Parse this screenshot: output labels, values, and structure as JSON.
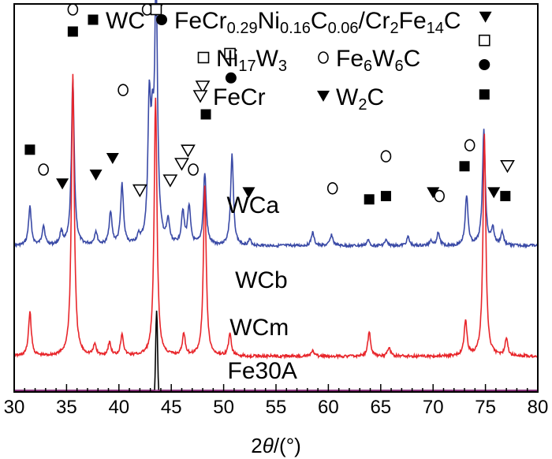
{
  "chart_data": {
    "type": "line",
    "xlabel_prefix": "2",
    "xlabel_var": "θ",
    "xlabel_unit": "/(°)",
    "xlim": [
      30,
      80
    ],
    "x_ticks": [
      "30",
      "35",
      "40",
      "45",
      "50",
      "55",
      "60",
      "65",
      "70",
      "75",
      "80"
    ],
    "grid": false,
    "legend": {
      "placement": "top-right",
      "entries": [
        {
          "marker": "filled-square",
          "label": "WC"
        },
        {
          "marker": "filled-circle",
          "label": "FeCr0.29Ni0.16C0.06/Cr2Fe14C"
        },
        {
          "marker": "open-square",
          "label": "Ni17W3"
        },
        {
          "marker": "open-circle",
          "label": "Fe6W6C"
        },
        {
          "marker": "open-triangle-down",
          "label": "FeCr"
        },
        {
          "marker": "filled-triangle-down",
          "label": "W2C"
        }
      ]
    },
    "series": [
      {
        "name": "WCa",
        "color": "#3a4aa6",
        "baseline": 0.62,
        "peaks": [
          [
            31.5,
            0.35
          ],
          [
            32.8,
            0.18
          ],
          [
            34.5,
            0.12
          ],
          [
            35.6,
            1.5
          ],
          [
            37.8,
            0.12
          ],
          [
            39.2,
            0.3
          ],
          [
            40.3,
            0.55
          ],
          [
            41.9,
            0.06
          ],
          [
            42.9,
            1.2
          ],
          [
            43.2,
            0.75
          ],
          [
            43.55,
            2.3
          ],
          [
            44.7,
            0.2
          ],
          [
            46.1,
            0.3
          ],
          [
            46.7,
            0.35
          ],
          [
            48.2,
            0.65
          ],
          [
            50.8,
            0.82
          ],
          [
            52.5,
            0.05
          ],
          [
            58.5,
            0.12
          ],
          [
            60.3,
            0.1
          ],
          [
            63.8,
            0.05
          ],
          [
            65.5,
            0.05
          ],
          [
            67.6,
            0.08
          ],
          [
            69.8,
            0.05
          ],
          [
            70.5,
            0.12
          ],
          [
            73.2,
            0.45
          ],
          [
            74.85,
            1.05
          ],
          [
            75.7,
            0.15
          ],
          [
            76.6,
            0.12
          ]
        ]
      },
      {
        "name": "WCb",
        "color": "#e8262b",
        "baseline": 1.62,
        "peaks": [
          [
            31.5,
            0.4
          ],
          [
            35.6,
            2.55
          ],
          [
            37.7,
            0.1
          ],
          [
            39.1,
            0.12
          ],
          [
            40.3,
            0.2
          ],
          [
            43.5,
            2.35
          ],
          [
            46.2,
            0.2
          ],
          [
            48.2,
            1.55
          ],
          [
            50.6,
            0.2
          ],
          [
            58.5,
            0.05
          ],
          [
            63.9,
            0.22
          ],
          [
            65.8,
            0.08
          ],
          [
            73.1,
            0.32
          ],
          [
            74.9,
            2.0
          ],
          [
            77.0,
            0.15
          ]
        ]
      },
      {
        "name": "WCm",
        "color": "#000000",
        "baseline": 2.52,
        "peaks": [
          [
            31.6,
            0.22
          ],
          [
            35.6,
            0.45
          ],
          [
            40.4,
            0.18
          ],
          [
            43.0,
            0.2
          ],
          [
            43.6,
            1.3
          ],
          [
            46.3,
            0.08
          ],
          [
            48.3,
            0.45
          ],
          [
            50.9,
            0.22
          ],
          [
            63.9,
            0.08
          ],
          [
            65.8,
            0.05
          ],
          [
            73.2,
            0.08
          ],
          [
            74.9,
            0.22
          ],
          [
            77.1,
            0.1
          ]
        ]
      },
      {
        "name": "Fe30A",
        "color": "#8a1a7a",
        "baseline": 2.9,
        "peaks": [
          [
            43.6,
            0.92
          ],
          [
            50.8,
            0.42
          ],
          [
            74.75,
            0.2
          ]
        ]
      }
    ],
    "annotations": [
      {
        "x": 31.5,
        "y": 0.73,
        "marker": "filled-square"
      },
      {
        "x": 32.8,
        "y": 0.55,
        "marker": "open-circle"
      },
      {
        "x": 34.6,
        "y": 0.42,
        "marker": "filled-triangle-down"
      },
      {
        "x": 35.6,
        "y": 1.8,
        "marker": "filled-square"
      },
      {
        "x": 35.6,
        "y": 2.03,
        "marker": "open-circle"
      },
      {
        "x": 37.8,
        "y": 0.5,
        "marker": "filled-triangle-down"
      },
      {
        "x": 39.4,
        "y": 0.65,
        "marker": "filled-triangle-down"
      },
      {
        "x": 40.4,
        "y": 1.27,
        "marker": "open-circle"
      },
      {
        "x": 42.0,
        "y": 0.36,
        "marker": "open-triangle-down"
      },
      {
        "x": 42.7,
        "y": 2.17,
        "marker": "open-circle"
      },
      {
        "x": 43.55,
        "y": 3.05,
        "marker": "filled-circle"
      },
      {
        "x": 43.55,
        "y": 3.2,
        "marker": "open-triangle-down"
      },
      {
        "x": 43.55,
        "y": 3.35,
        "marker": "open-square"
      },
      {
        "x": 44.9,
        "y": 0.45,
        "marker": "open-triangle-down"
      },
      {
        "x": 46.0,
        "y": 0.6,
        "marker": "open-triangle-down"
      },
      {
        "x": 46.6,
        "y": 0.72,
        "marker": "open-triangle-down"
      },
      {
        "x": 47.1,
        "y": 0.55,
        "marker": "open-circle"
      },
      {
        "x": 48.3,
        "y": 1.05,
        "marker": "filled-square"
      },
      {
        "x": 48.0,
        "y": 1.3,
        "marker": "open-triangle-down"
      },
      {
        "x": 50.7,
        "y": 1.38,
        "marker": "filled-circle"
      },
      {
        "x": 50.6,
        "y": 1.6,
        "marker": "open-square"
      },
      {
        "x": 52.4,
        "y": 0.34,
        "marker": "filled-triangle-down"
      },
      {
        "x": 60.4,
        "y": 0.38,
        "marker": "open-circle"
      },
      {
        "x": 63.9,
        "y": 0.28,
        "marker": "filled-square"
      },
      {
        "x": 65.5,
        "y": 0.31,
        "marker": "filled-square"
      },
      {
        "x": 65.5,
        "y": 0.67,
        "marker": "open-circle"
      },
      {
        "x": 70.0,
        "y": 0.34,
        "marker": "filled-triangle-down"
      },
      {
        "x": 70.6,
        "y": 0.31,
        "marker": "open-circle"
      },
      {
        "x": 73.0,
        "y": 0.58,
        "marker": "filled-square"
      },
      {
        "x": 73.5,
        "y": 0.77,
        "marker": "open-circle"
      },
      {
        "x": 74.9,
        "y": 1.23,
        "marker": "filled-square"
      },
      {
        "x": 74.9,
        "y": 1.5,
        "marker": "filled-circle"
      },
      {
        "x": 74.9,
        "y": 1.72,
        "marker": "open-square"
      },
      {
        "x": 75.0,
        "y": 1.93,
        "marker": "filled-triangle-down"
      },
      {
        "x": 75.8,
        "y": 0.34,
        "marker": "filled-triangle-down"
      },
      {
        "x": 76.9,
        "y": 0.31,
        "marker": "filled-square"
      },
      {
        "x": 77.1,
        "y": 0.58,
        "marker": "open-triangle-down"
      }
    ]
  }
}
